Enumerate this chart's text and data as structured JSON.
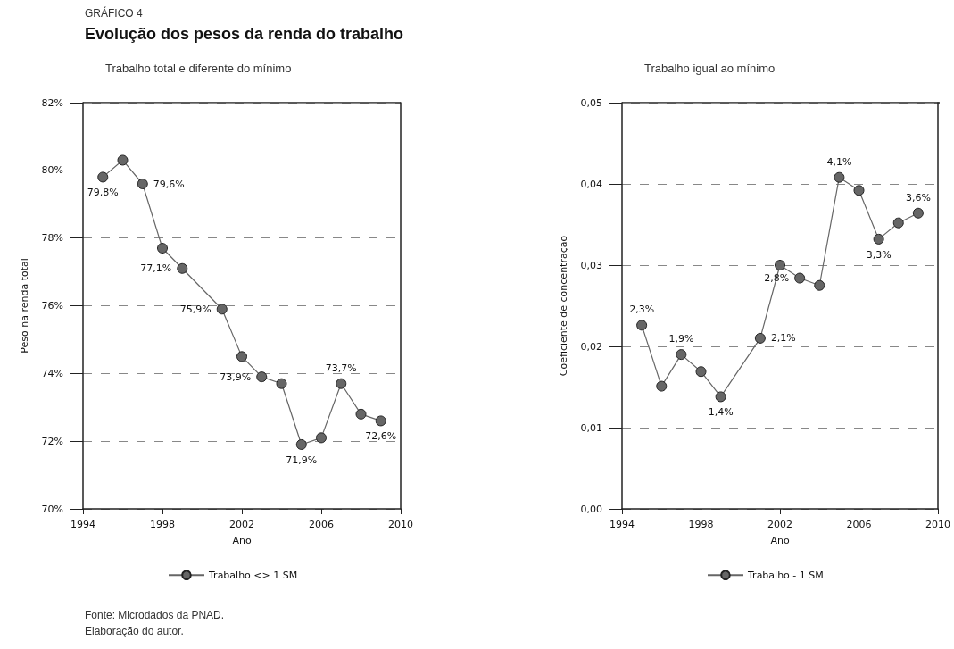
{
  "chart_data": [
    {
      "type": "line",
      "title": "Evolução dos pesos da renda do trabalho",
      "subtitle": "Trabalho total e diferente do mínimo",
      "xlabel": "Ano",
      "ylabel": "Peso na renda total",
      "annotations": [
        "GRÁFICO 4",
        "Fonte: Microdados da PNAD.",
        "Elaboração do autor."
      ],
      "x": [
        1995,
        1996,
        1997,
        1998,
        1999,
        2001,
        2002,
        2003,
        2004,
        2005,
        2006,
        2007,
        2008,
        2009
      ],
      "series": [
        {
          "name": "Trabalho <> 1 SM",
          "color": "#666666",
          "values": [
            79.8,
            80.3,
            79.6,
            77.7,
            77.1,
            75.9,
            74.5,
            73.9,
            73.7,
            71.9,
            72.1,
            73.7,
            72.8,
            72.6
          ],
          "value_labels": [
            "79,8%",
            null,
            "79,6%",
            null,
            "77,1%",
            "75,9%",
            null,
            "73,9%",
            null,
            "71,9%",
            null,
            "73,7%",
            null,
            "72,6%"
          ]
        }
      ],
      "xlim": [
        1994,
        2010
      ],
      "xticks": [
        1994,
        1998,
        2002,
        2006,
        2010
      ],
      "ylim": [
        70,
        82
      ],
      "yticks": [
        {
          "value": 70,
          "label": "70%"
        },
        {
          "value": 72,
          "label": "72%"
        },
        {
          "value": 74,
          "label": "74%"
        },
        {
          "value": 76,
          "label": "76%"
        },
        {
          "value": 78,
          "label": "78%"
        },
        {
          "value": 80,
          "label": "80%"
        },
        {
          "value": 82,
          "label": "82%"
        }
      ],
      "grid": "y",
      "legend": "bottom",
      "marker": "circle",
      "line_style": "solid"
    },
    {
      "type": "line",
      "title": "Trabalho igual ao mínimo",
      "xlabel": "Ano",
      "ylabel": "Coeficiente de concentração",
      "x": [
        1995,
        1996,
        1997,
        1998,
        1999,
        2001,
        2002,
        2003,
        2004,
        2005,
        2006,
        2007,
        2008,
        2009
      ],
      "series": [
        {
          "name": "Trabalho - 1 SM",
          "color": "#666666",
          "values": [
            0.0226,
            0.0151,
            0.019,
            0.0169,
            0.0138,
            0.021,
            0.03,
            0.0284,
            0.0275,
            0.0408,
            0.0392,
            0.0332,
            0.0352,
            0.0364
          ],
          "value_labels": [
            "2,3%",
            null,
            "1,9%",
            null,
            "1,4%",
            "2,1%",
            null,
            "2,8%",
            null,
            "4,1%",
            null,
            "3,3%",
            null,
            "3,6%"
          ]
        }
      ],
      "xlim": [
        1994,
        2010
      ],
      "xticks": [
        1994,
        1998,
        2002,
        2006,
        2010
      ],
      "ylim": [
        0,
        0.05
      ],
      "yticks": [
        {
          "value": 0,
          "label": "0,00"
        },
        {
          "value": 0.01,
          "label": "0,01"
        },
        {
          "value": 0.02,
          "label": "0,02"
        },
        {
          "value": 0.03,
          "label": "0,03"
        },
        {
          "value": 0.04,
          "label": "0,04"
        },
        {
          "value": 0.05,
          "label": "0,05"
        }
      ],
      "grid": "y",
      "legend": "bottom",
      "marker": "circle",
      "line_style": "solid"
    }
  ]
}
